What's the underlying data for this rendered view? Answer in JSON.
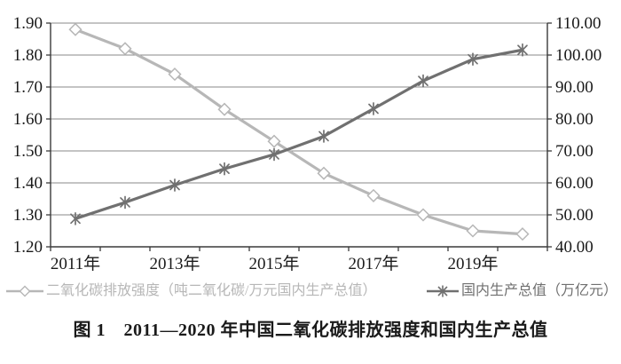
{
  "caption": "图 1　2011—2020 年中国二氧化碳排放强度和国内生产总值",
  "chart_data": {
    "type": "line",
    "categories": [
      "2011年",
      "2012年",
      "2013年",
      "2014年",
      "2015年",
      "2016年",
      "2017年",
      "2018年",
      "2019年",
      "2020年"
    ],
    "x_axis": {
      "labeled_categories": [
        "2011年",
        "2013年",
        "2015年",
        "2017年",
        "2019年"
      ]
    },
    "left_axis": {
      "min": 1.2,
      "max": 1.9,
      "step": 0.1,
      "decimals": 2
    },
    "right_axis": {
      "min": 40,
      "max": 110,
      "step": 10,
      "decimals": 2
    },
    "grid": true,
    "legend_position": "bottom",
    "colors": {
      "grid": "#8a8a8a",
      "axis": "#3a3a3a",
      "text": "#1a1a1a"
    },
    "series": [
      {
        "id": "co2-intensity",
        "name": "二氧化碳排放强度（吨二氧化碳/万元国内生产总值）",
        "axis": "left",
        "marker": "diamond",
        "color": "#b7b7b7",
        "values": [
          1.88,
          1.82,
          1.74,
          1.63,
          1.53,
          1.43,
          1.36,
          1.3,
          1.25,
          1.24
        ]
      },
      {
        "id": "gdp",
        "name": "国内生产总值（万亿元）",
        "axis": "right",
        "marker": "asterisk",
        "color": "#707070",
        "values": [
          48.8,
          53.9,
          59.3,
          64.4,
          68.9,
          74.6,
          83.2,
          91.9,
          98.7,
          101.6
        ]
      }
    ]
  }
}
